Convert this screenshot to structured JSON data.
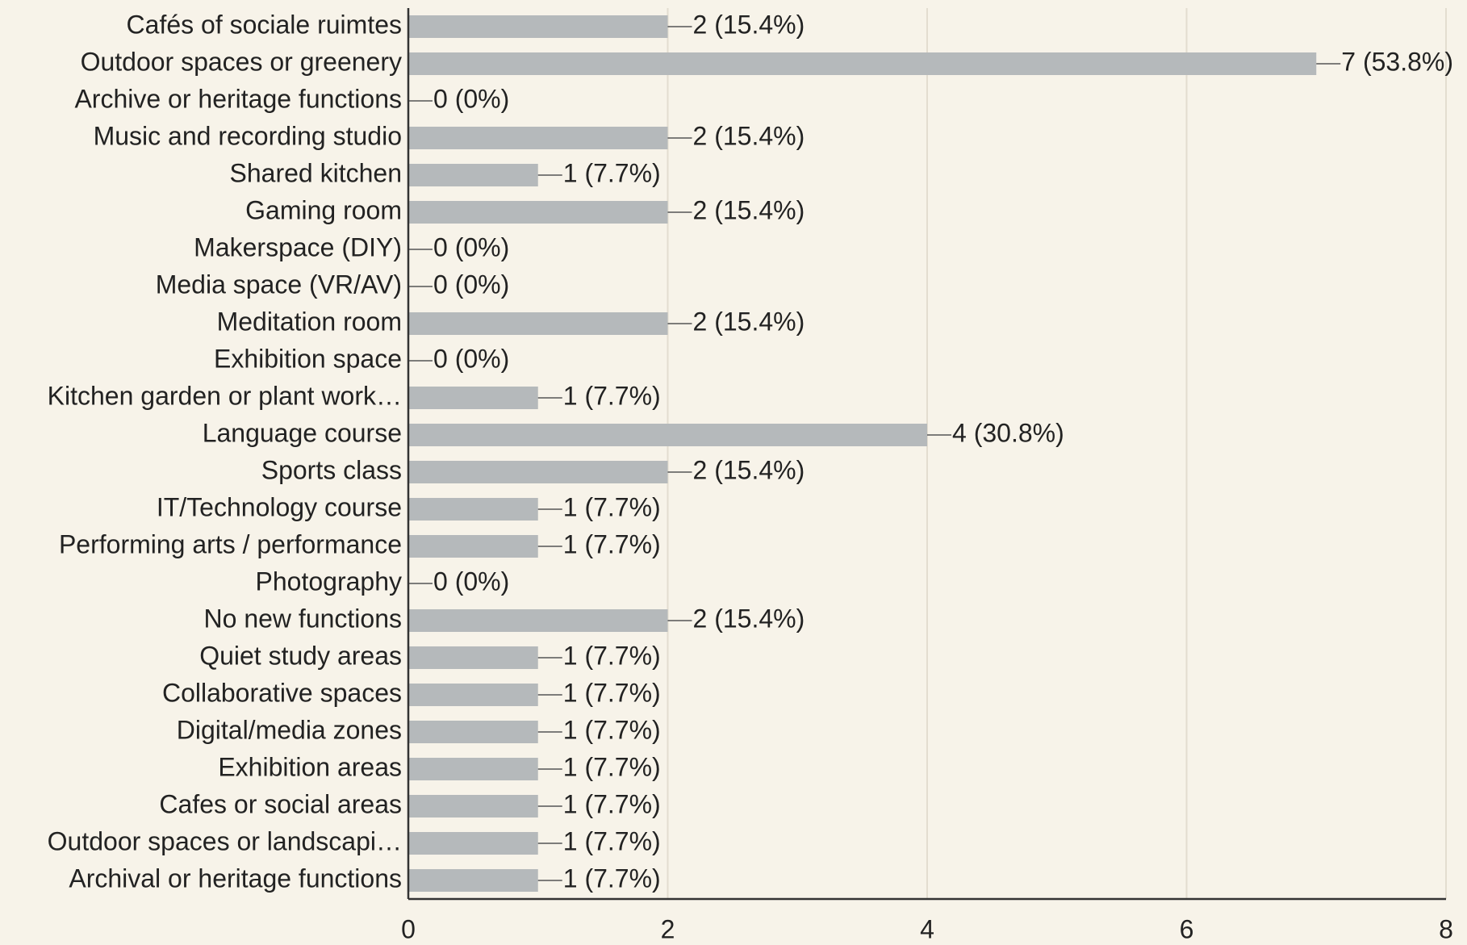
{
  "chart_data": {
    "type": "barh",
    "categories": [
      "Cafés of sociale ruimtes",
      "Outdoor spaces or greenery",
      "Archive or heritage functions",
      "Music and recording studio",
      "Shared kitchen",
      "Gaming room",
      "Makerspace (DIY)",
      "Media space (VR/AV)",
      "Meditation room",
      "Exhibition space",
      "Kitchen garden or plant work…",
      "Language course",
      "Sports class",
      "IT/Technology course",
      "Performing arts / performance",
      "Photography",
      "No new functions",
      "Quiet study areas",
      "Collaborative spaces",
      "Digital/media zones",
      "Exhibition areas",
      "Cafes or social areas",
      "Outdoor spaces or landscapi…",
      "Archival or heritage functions"
    ],
    "values": [
      2,
      7,
      0,
      2,
      1,
      2,
      0,
      0,
      2,
      0,
      1,
      4,
      2,
      1,
      1,
      0,
      2,
      1,
      1,
      1,
      1,
      1,
      1,
      1
    ],
    "value_labels": [
      "2 (15.4%)",
      "7 (53.8%)",
      "0 (0%)",
      "2 (15.4%)",
      "1 (7.7%)",
      "2 (15.4%)",
      "0 (0%)",
      "0 (0%)",
      "2 (15.4%)",
      "0 (0%)",
      "1 (7.7%)",
      "4 (30.8%)",
      "2 (15.4%)",
      "1 (7.7%)",
      "1 (7.7%)",
      "0 (0%)",
      "2 (15.4%)",
      "1 (7.7%)",
      "1 (7.7%)",
      "1 (7.7%)",
      "1 (7.7%)",
      "1 (7.7%)",
      "1 (7.7%)",
      "1 (7.7%)"
    ],
    "color": "#b5b9bb",
    "xlim": [
      0,
      8
    ],
    "xticks": [
      0,
      2,
      4,
      6,
      8
    ],
    "grid": true
  }
}
